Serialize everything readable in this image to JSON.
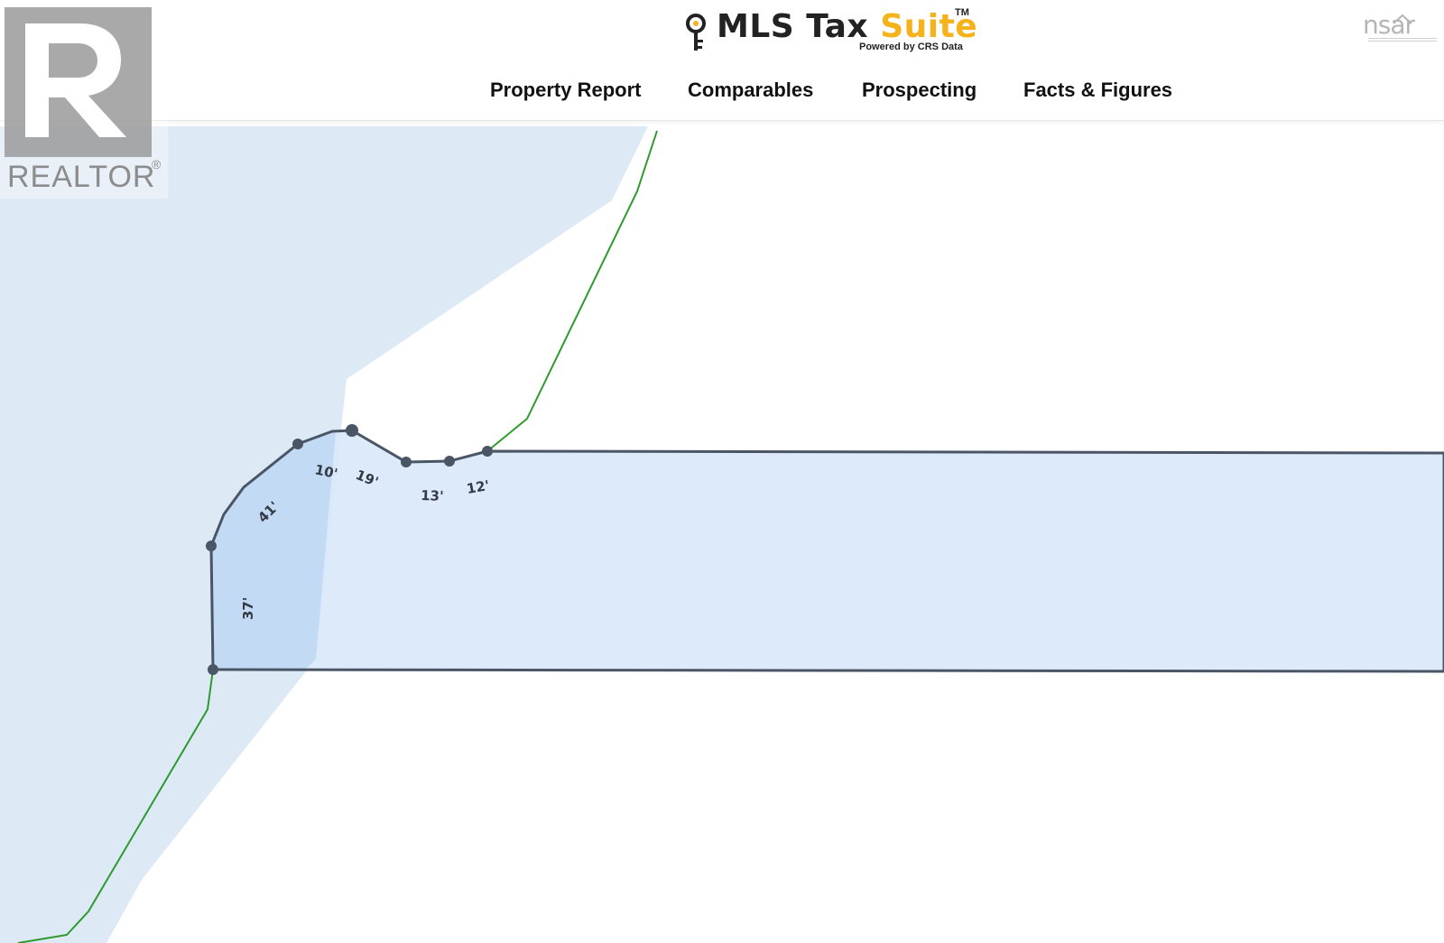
{
  "header": {
    "brand": {
      "name_part1": "MLS Tax ",
      "name_part2": "Suite",
      "trademark": "TM",
      "tagline": "Powered by CRS Data",
      "accent_color": "#f5b21a"
    },
    "nav": [
      {
        "label": "Property Report"
      },
      {
        "label": "Comparables"
      },
      {
        "label": "Prospecting"
      },
      {
        "label": "Facts & Figures"
      }
    ],
    "partner_logo": {
      "text": "nsar",
      "icon": "house-roof-icon"
    }
  },
  "watermark": {
    "brand": "REALTOR",
    "registered_mark": "®",
    "icon": "realtor-r-icon"
  },
  "map": {
    "dimensions": [
      {
        "label": "10'"
      },
      {
        "label": "19'"
      },
      {
        "label": "13'"
      },
      {
        "label": "12'"
      },
      {
        "label": "41'"
      },
      {
        "label": "37'"
      }
    ],
    "colors": {
      "water": "#dde9f5",
      "parcel_fill": "#d8e8fa",
      "parcel_overlap": "#c4dbf5",
      "parcel_stroke": "#4a5566",
      "shoreline": "#2e9a2e"
    }
  }
}
